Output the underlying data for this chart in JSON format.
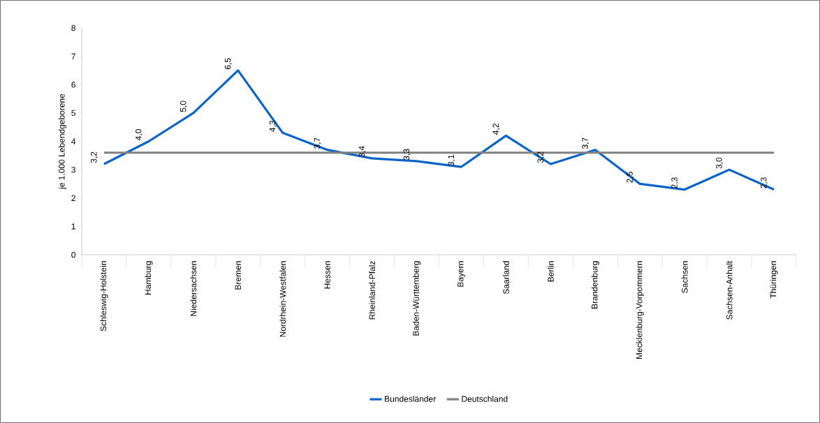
{
  "chart_data": {
    "type": "line",
    "ylabel": "je 1.000 Lebendgeborene",
    "categories": [
      "Schleswig-Holstein",
      "Hamburg",
      "Niedersachsen",
      "Bremen",
      "Nordrhein-Westfalen",
      "Hessen",
      "Rheinland-Pfalz",
      "Baden-Württemberg",
      "Bayern",
      "Saarland",
      "Berlin",
      "Brandenburg",
      "Mecklenburg-Vorpommern",
      "Sachsen",
      "Sachsen-Anhalt",
      "Thüringen"
    ],
    "series": [
      {
        "name": "Bundesländer",
        "color": "#0a64c8",
        "values": [
          3.2,
          4.0,
          5.0,
          6.5,
          4.3,
          3.7,
          3.4,
          3.3,
          3.1,
          4.2,
          3.2,
          3.7,
          2.5,
          2.3,
          3.0,
          2.3
        ],
        "value_labels": [
          "3,2",
          "4,0",
          "5,0",
          "6,5",
          "4,3",
          "3,7",
          "3,4",
          "3,3",
          "3,1",
          "4,2",
          "3,2",
          "3,7",
          "2,5",
          "2,3",
          "3,0",
          "2,3"
        ]
      },
      {
        "name": "Deutschland",
        "color": "#808080",
        "values": [
          3.6,
          3.6,
          3.6,
          3.6,
          3.6,
          3.6,
          3.6,
          3.6,
          3.6,
          3.6,
          3.6,
          3.6,
          3.6,
          3.6,
          3.6,
          3.6
        ]
      }
    ],
    "ylim": [
      0,
      8
    ],
    "yticks": [
      0,
      1,
      2,
      3,
      4,
      5,
      6,
      7,
      8
    ],
    "legend": "bottom",
    "grid": false,
    "marker": "none",
    "line_style": "solid"
  }
}
